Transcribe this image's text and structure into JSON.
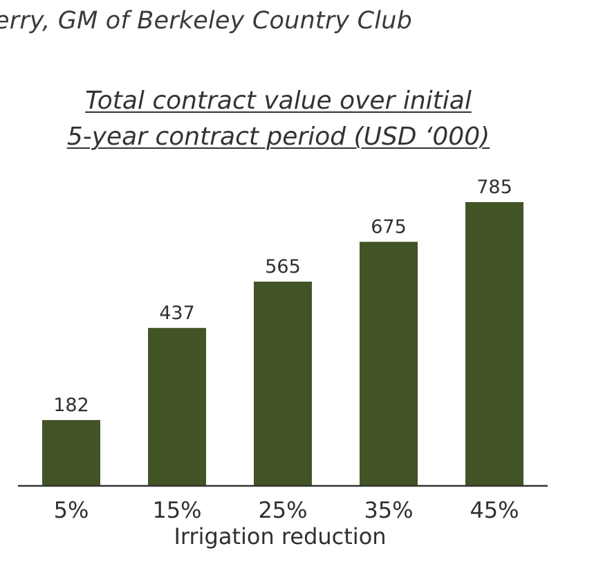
{
  "caption": "erry, GM of Berkeley Country Club",
  "colors": {
    "bar": "#425426",
    "axis": "#333333",
    "text": "#2f2f2f"
  },
  "chart_data": {
    "type": "bar",
    "title": "Total contract value over initial 5-year contract period (USD ‘000)",
    "title_lines": [
      "Total contract value over initial",
      "5-year contract period (USD ‘000)"
    ],
    "xlabel": "Irrigation reduction",
    "ylabel": "",
    "categories": [
      "5%",
      "15%",
      "25%",
      "35%",
      "45%"
    ],
    "values": [
      182,
      437,
      565,
      675,
      785
    ],
    "ylim": [
      0,
      800
    ],
    "grid": false,
    "legend": "none",
    "data_labels": true
  }
}
